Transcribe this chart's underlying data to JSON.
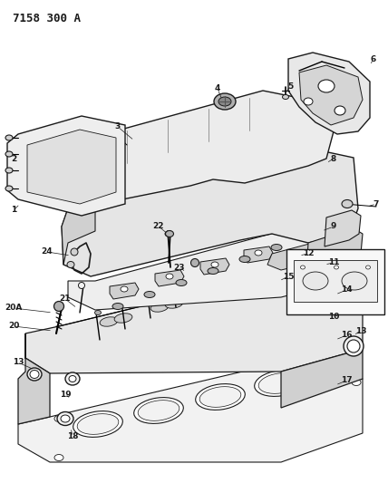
{
  "title": "7158 300 A",
  "bg_color": "#ffffff",
  "line_color": "#1a1a1a",
  "fig_width": 4.28,
  "fig_height": 5.33,
  "dpi": 100,
  "gray_light": "#e8e8e8",
  "gray_mid": "#d0d0d0",
  "gray_dark": "#b0b0b0",
  "gray_very_light": "#f2f2f2"
}
